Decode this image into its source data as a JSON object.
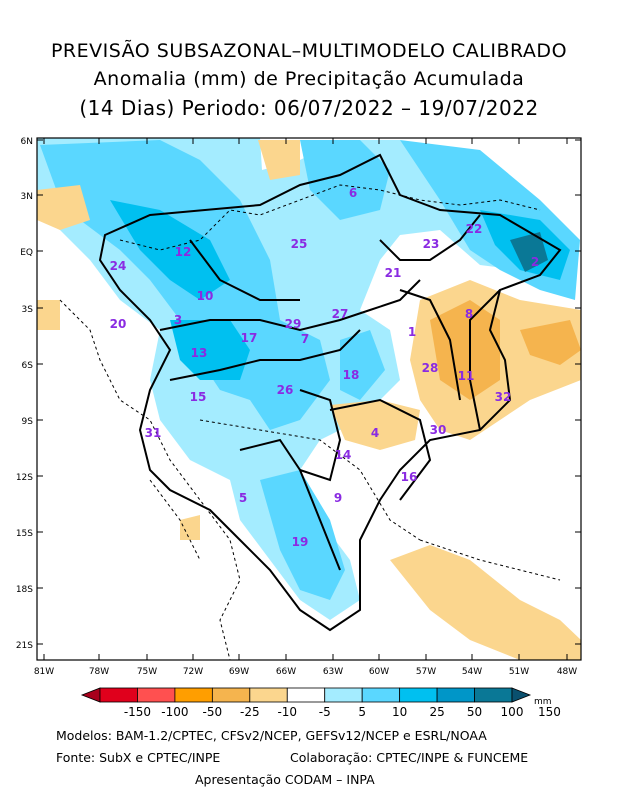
{
  "title": {
    "line1": "PREVISÃO SUBSAZONAL–MULTIMODELO CALIBRADO",
    "line2": "Anomalia (mm) de Precipitação Acumulada",
    "line3": "(14 Dias) Periodo: 06/07/2022 – 19/07/2022"
  },
  "axes": {
    "lat_labels": [
      "6N",
      "3N",
      "EQ",
      "3S",
      "6S",
      "9S",
      "12S",
      "15S",
      "18S",
      "21S"
    ],
    "lon_labels": [
      "81W",
      "78W",
      "75W",
      "72W",
      "69W",
      "66W",
      "63W",
      "60W",
      "57W",
      "54W",
      "51W",
      "48W"
    ]
  },
  "basins": [
    {
      "id": "1"
    },
    {
      "id": "2"
    },
    {
      "id": "3"
    },
    {
      "id": "4"
    },
    {
      "id": "5"
    },
    {
      "id": "6"
    },
    {
      "id": "7"
    },
    {
      "id": "8"
    },
    {
      "id": "9"
    },
    {
      "id": "10"
    },
    {
      "id": "11"
    },
    {
      "id": "12"
    },
    {
      "id": "13"
    },
    {
      "id": "14"
    },
    {
      "id": "15"
    },
    {
      "id": "16"
    },
    {
      "id": "17"
    },
    {
      "id": "18"
    },
    {
      "id": "19"
    },
    {
      "id": "20"
    },
    {
      "id": "21"
    },
    {
      "id": "22"
    },
    {
      "id": "23"
    },
    {
      "id": "24"
    },
    {
      "id": "25"
    },
    {
      "id": "26"
    },
    {
      "id": "27"
    },
    {
      "id": "28"
    },
    {
      "id": "29"
    },
    {
      "id": "30"
    },
    {
      "id": "31"
    },
    {
      "id": "32"
    }
  ],
  "colorbar": {
    "labels": [
      "-150",
      "-100",
      "-50",
      "-25",
      "-10",
      "-5",
      "5",
      "10",
      "25",
      "50",
      "100",
      "150"
    ],
    "unit": "mm",
    "colors": [
      "#a8001c",
      "#e0001c",
      "#ff5050",
      "#ff9e00",
      "#f5b44e",
      "#fbd68e",
      "#ffffff",
      "#a4ecff",
      "#5ad7ff",
      "#00c0f0",
      "#0096c8",
      "#0a7896",
      "#0a506e"
    ]
  },
  "credits": {
    "models": "Modelos: BAM-1.2/CPTEC, CFSv2/NCEP, GEFSv12/NCEP e ESRL/NOAA",
    "source": "Fonte: SubX e CPTEC/INPE",
    "collab": "Colaboração: CPTEC/INPE & FUNCEME",
    "presentation": "Apresentação CODAM – INPA"
  }
}
